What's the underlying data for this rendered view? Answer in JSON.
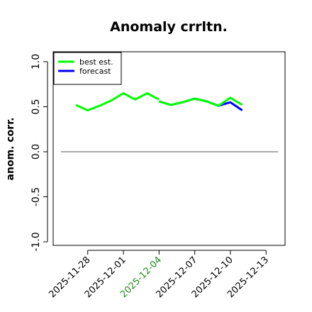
{
  "chart_data": {
    "type": "line",
    "title": "Anomaly crrltn.",
    "ylabel": "anom. corr.",
    "xlabel": "",
    "ylim": [
      -1.0,
      1.0
    ],
    "yticks": [
      "-1.0",
      "-0.5",
      "0.0",
      "0.5",
      "1.0"
    ],
    "ytick_values": [
      -1.0,
      -0.5,
      0.0,
      0.5,
      1.0
    ],
    "x_range": [
      "2025-11-25T18",
      "2025-12-14"
    ],
    "xticks": [
      {
        "label": "2025-11-28",
        "date": "2025-11-28",
        "color": "#000000"
      },
      {
        "label": "2025-12-01",
        "date": "2025-12-01",
        "color": "#000000"
      },
      {
        "label": "2025-12-04",
        "date": "2025-12-04",
        "color": "#228B22"
      },
      {
        "label": "2025-12-07",
        "date": "2025-12-07",
        "color": "#000000"
      },
      {
        "label": "2025-12-10",
        "date": "2025-12-10",
        "color": "#000000"
      },
      {
        "label": "2025-12-13",
        "date": "2025-12-13",
        "color": "#000000"
      }
    ],
    "reference_line": 0.0,
    "legend_position": "top-left",
    "series": [
      {
        "name": "best est.",
        "color": "#00ff00",
        "x": [
          "2025-11-27",
          "2025-11-28",
          "2025-11-29",
          "2025-11-30",
          "2025-12-01",
          "2025-12-02",
          "2025-12-03",
          "2025-12-04"
        ],
        "values": [
          0.52,
          0.46,
          0.51,
          0.57,
          0.65,
          0.58,
          0.65,
          0.58
        ]
      },
      {
        "name": "forecast",
        "color": "#0000ff",
        "x": [
          "2025-12-04",
          "2025-12-05",
          "2025-12-06",
          "2025-12-07",
          "2025-12-08",
          "2025-12-09",
          "2025-12-10",
          "2025-12-11"
        ],
        "values": [
          0.56,
          0.52,
          0.55,
          0.59,
          0.56,
          0.51,
          0.55,
          0.46
        ]
      },
      {
        "name": "",
        "color": "#00ff00",
        "x": [
          "2025-12-04",
          "2025-12-05",
          "2025-12-06",
          "2025-12-07",
          "2025-12-08",
          "2025-12-09",
          "2025-12-10",
          "2025-12-11"
        ],
        "values": [
          0.56,
          0.52,
          0.55,
          0.59,
          0.56,
          0.51,
          0.6,
          0.52
        ]
      }
    ]
  }
}
